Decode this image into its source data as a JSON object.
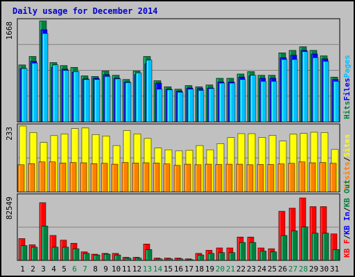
{
  "chart_data": {
    "title": "Daily usage for December 2014",
    "days": [
      "1",
      "2",
      "3",
      "4",
      "5",
      "6",
      "7",
      "8",
      "9",
      "10",
      "11",
      "12",
      "13",
      "14",
      "15",
      "16",
      "17",
      "18",
      "19",
      "20",
      "21",
      "22",
      "23",
      "24",
      "25",
      "26",
      "27",
      "28",
      "29",
      "30",
      "31"
    ],
    "weekend_days": [
      "6",
      "7",
      "13",
      "14",
      "20",
      "21",
      "27",
      "28"
    ],
    "colors": {
      "hits": "#008040",
      "files": "#0000ff",
      "pages": "#00c0ff",
      "visits": "#ffff00",
      "sites": "#ff8000",
      "kb_in": "#008040",
      "kb_out": "#ff0000",
      "weekday_label": "#000000",
      "weekend_label": "#008040"
    },
    "panels": [
      {
        "type": "bar",
        "max_label": "1668",
        "ylim": [
          0,
          1668
        ],
        "legend": [
          {
            "text": "Hits",
            "color": "#008040"
          },
          {
            "text": "Files",
            "color": "#0000ff"
          },
          {
            "text": "Pages",
            "color": "#00c0ff"
          }
        ],
        "series": [
          {
            "name": "Hits",
            "values": [
              940,
              1080,
              1668,
              980,
              930,
              900,
              760,
              750,
              840,
              770,
              700,
              840,
              1080,
              680,
              580,
              540,
              600,
              580,
              610,
              720,
              720,
              790,
              830,
              770,
              770,
              1140,
              1180,
              1240,
              1180,
              1090,
              740
            ]
          },
          {
            "name": "Files",
            "values": [
              880,
              1000,
              1520,
              900,
              870,
              820,
              710,
              720,
              780,
              720,
              660,
              780,
              960,
              640,
              540,
              510,
              560,
              550,
              560,
              660,
              660,
              740,
              760,
              720,
              720,
              1060,
              1100,
              1180,
              1120,
              1040,
              700
            ]
          },
          {
            "name": "Pages",
            "values": [
              880,
              970,
              1460,
              940,
              850,
              830,
              700,
              700,
              750,
              710,
              650,
              810,
              1020,
              540,
              530,
              490,
              540,
              520,
              550,
              640,
              640,
              700,
              770,
              670,
              670,
              1030,
              1030,
              1160,
              1060,
              1000,
              670
            ]
          }
        ]
      },
      {
        "type": "bar",
        "max_label": "233",
        "ylim": [
          0,
          233
        ],
        "legend": [
          {
            "text": "Visits",
            "color": "#ff8000"
          },
          {
            "text": "/",
            "color": "#000000"
          },
          {
            "text": "Sites",
            "color": "#ffff00"
          }
        ],
        "series": [
          {
            "name": "Visits",
            "values": [
              233,
              210,
              175,
              199,
              205,
              224,
              226,
              203,
              198,
              164,
              217,
              205,
              189,
              155,
              149,
              145,
              147,
              164,
              149,
              171,
              192,
              206,
              206,
              193,
              200,
              180,
              204,
              207,
              211,
              210,
              150
            ]
          },
          {
            "name": "Sites",
            "values": [
              96,
              100,
              106,
              106,
              102,
              104,
              103,
              100,
              101,
              98,
              104,
              102,
              103,
              102,
              99,
              94,
              98,
              96,
              98,
              97,
              98,
              98,
              96,
              97,
              97,
              99,
              101,
              106,
              103,
              104,
              101
            ]
          }
        ]
      },
      {
        "type": "bar",
        "max_label": "82549",
        "ylim": [
          0,
          82549
        ],
        "legend": [
          {
            "text": "KB F",
            "color": "#ff0000"
          },
          {
            "text": "/",
            "color": "#000000"
          },
          {
            "text": "KB In",
            "color": "#0000ff"
          },
          {
            "text": "/",
            "color": "#000000"
          },
          {
            "text": "KB Out",
            "color": "#008040"
          }
        ],
        "series": [
          {
            "name": "KB F",
            "values": [
              28000,
              20000,
              74000,
              32000,
              26000,
              22000,
              11000,
              8000,
              9000,
              9000,
              4000,
              4000,
              21000,
              3000,
              3000,
              3000,
              2000,
              9000,
              13000,
              16000,
              16000,
              30000,
              30000,
              16000,
              15000,
              63000,
              67000,
              80000,
              69000,
              69000,
              34000
            ]
          },
          {
            "name": "KB Out",
            "values": [
              19000,
              17000,
              44000,
              17000,
              17000,
              15000,
              9000,
              7000,
              8000,
              7000,
              3000,
              3000,
              14000,
              2000,
              2000,
              2000,
              1000,
              7000,
              9000,
              10000,
              10000,
              23000,
              23000,
              12000,
              11000,
              32000,
              38000,
              43000,
              35000,
              35000,
              14000
            ]
          }
        ]
      }
    ]
  }
}
